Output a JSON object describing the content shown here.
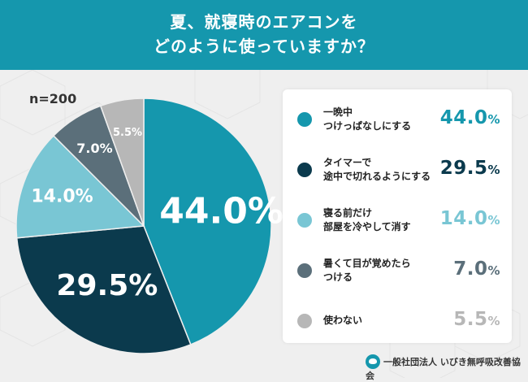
{
  "header": {
    "title_line1": "夏、就寝時のエアコンを",
    "title_line2": "どのように使っていますか？"
  },
  "sample_size": "n=200",
  "colors": {
    "header_bg": "#1597ad",
    "series": [
      "#1597ad",
      "#0b3a4d",
      "#79c6d4",
      "#5b6f7a",
      "#b7b7b7"
    ]
  },
  "chart_data": {
    "type": "pie",
    "title": "夏、就寝時のエアコンをどのように使っていますか？",
    "categories": [
      "一晩中つけっぱなしにする",
      "タイマーで途中で切れるようにする",
      "寝る前だけ部屋を冷やして消す",
      "暑くて目が覚めたらつける",
      "使わない"
    ],
    "values": [
      44.0,
      29.5,
      14.0,
      7.0,
      5.5
    ],
    "slice_labels": [
      "44.0%",
      "29.5%",
      "14.0%",
      "7.0%",
      "5.5%"
    ],
    "legend_position": "right"
  },
  "legend": {
    "items": [
      {
        "label": "一晩中\nつけっぱなしにする",
        "value": "44.0",
        "unit": "%"
      },
      {
        "label": "タイマーで\n途中で切れるようにする",
        "value": "29.5",
        "unit": "%"
      },
      {
        "label": "寝る前だけ\n部屋を冷やして消す",
        "value": "14.0",
        "unit": "%"
      },
      {
        "label": "暑くて目が覚めたら\nつける",
        "value": "7.0",
        "unit": "%"
      },
      {
        "label": "使わない",
        "value": "5.5",
        "unit": "%"
      }
    ]
  },
  "footer": {
    "organization": "一般社団法人 いびき無呼吸改善協会"
  }
}
